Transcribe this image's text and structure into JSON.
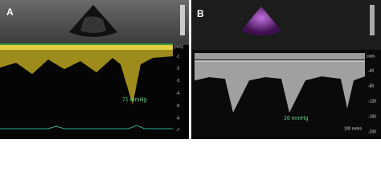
{
  "panels": [
    {
      "label": "A",
      "annotation": "71 mmHg",
      "unit": "[m/s]",
      "scale_labels": [
        "-1",
        "-2",
        "-3",
        "-4",
        "-5",
        "-6",
        "-7"
      ]
    },
    {
      "label": "B",
      "annotation": "16 mmHg",
      "unit": "cm/s",
      "scale_labels": [
        "-40",
        "-80",
        "-120",
        "-160",
        "-200"
      ],
      "sweep": "100 mm/s"
    }
  ]
}
